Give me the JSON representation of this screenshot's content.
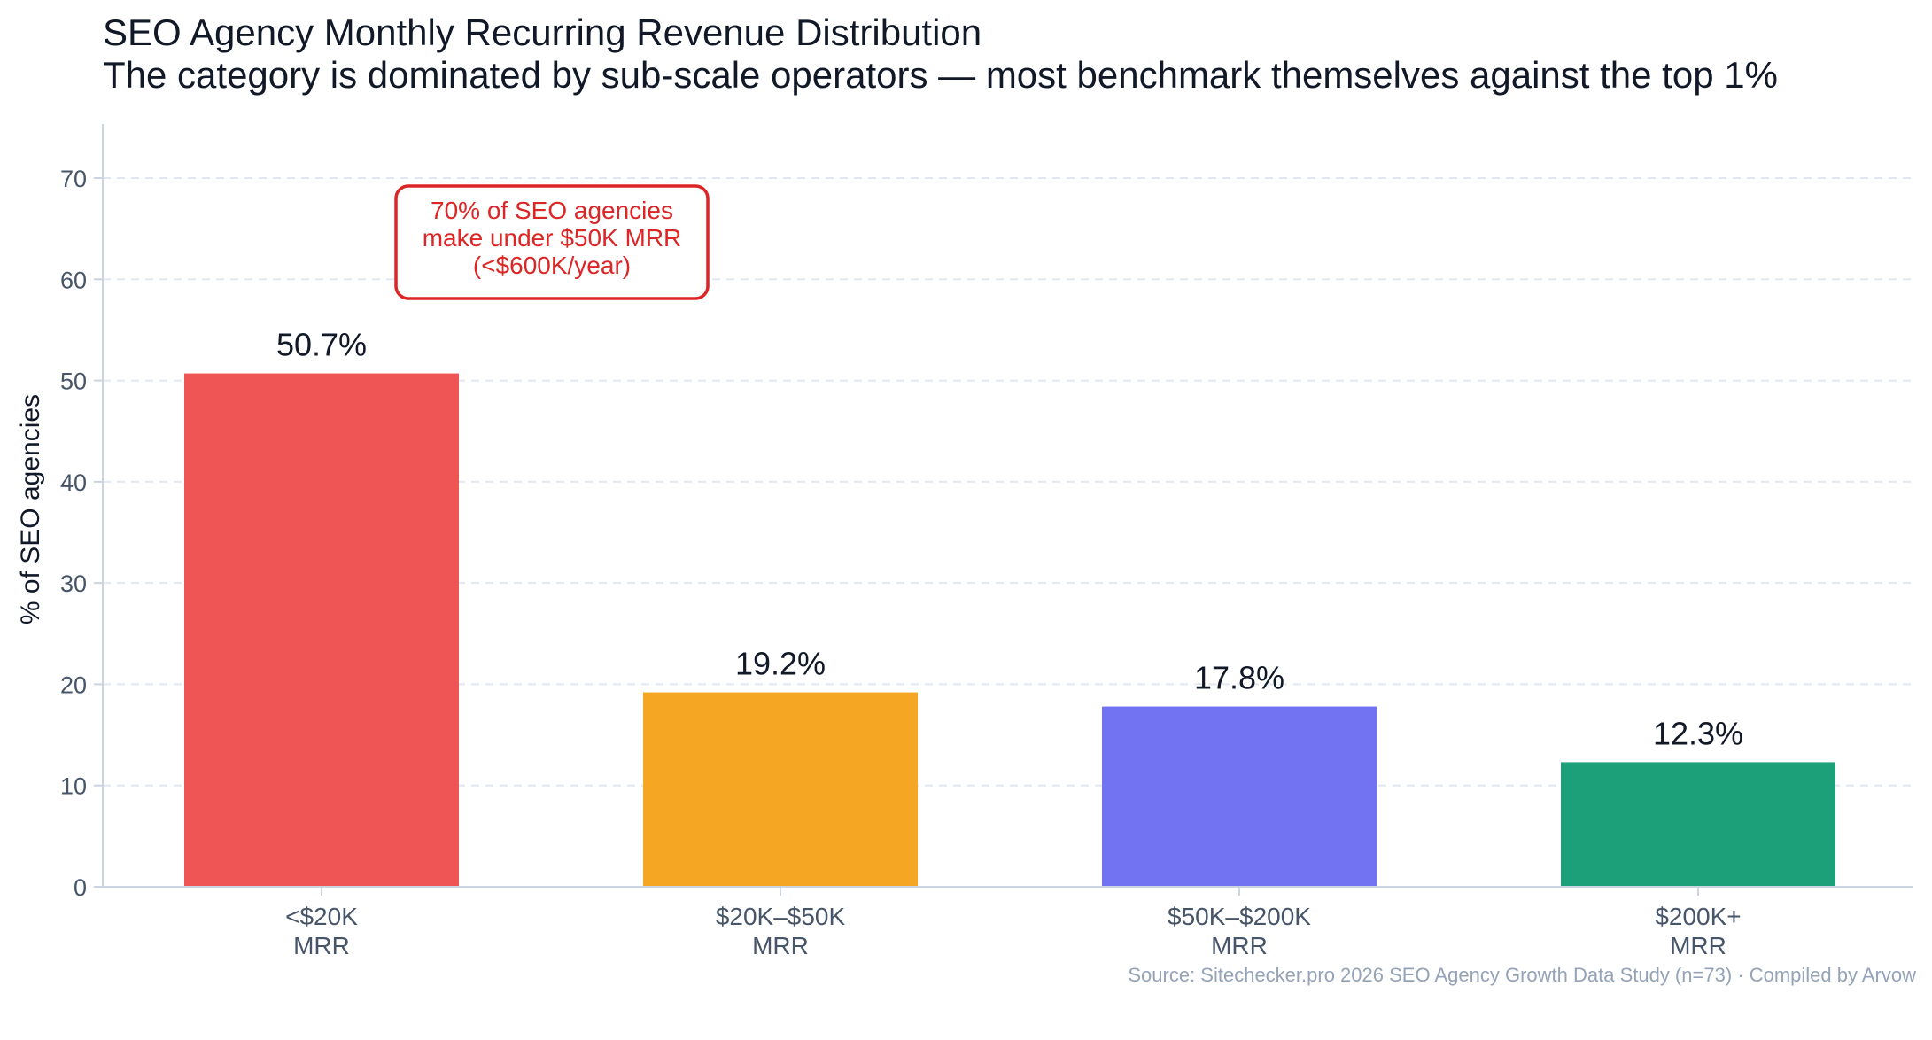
{
  "header": {
    "title": "SEO Agency Monthly Recurring Revenue Distribution",
    "subtitle": "The category is dominated by sub-scale operators — most benchmark themselves against the top 1%"
  },
  "footer": {
    "source": "Source: Sitechecker.pro 2026 SEO Agency Growth Data Study (n=73) · Compiled by Arvow"
  },
  "chart_data": {
    "type": "bar",
    "title": "SEO Agency Monthly Recurring Revenue Distribution",
    "subtitle": "The category is dominated by sub-scale operators — most benchmark themselves against the top 1%",
    "xlabel": "",
    "ylabel": "% of SEO agencies",
    "ylim": [
      0,
      75
    ],
    "yticks": [
      0,
      10,
      20,
      30,
      40,
      50,
      60,
      70
    ],
    "grid": "horizontal dashed",
    "categories": [
      [
        "<$20K",
        "MRR"
      ],
      [
        "$20K–$50K",
        "MRR"
      ],
      [
        "$50K–$200K",
        "MRR"
      ],
      [
        "$200K+",
        "MRR"
      ]
    ],
    "values": [
      50.7,
      19.2,
      17.8,
      12.3
    ],
    "value_labels": [
      "50.7%",
      "19.2%",
      "17.8%",
      "12.3%"
    ],
    "colors": [
      "#ef5555",
      "#f5a623",
      "#7173f2",
      "#1ba07a"
    ],
    "annotation": {
      "lines": [
        "70% of SEO agencies",
        "make under $50K MRR",
        "(<$600K/year)"
      ],
      "color": "#dc2626"
    }
  }
}
